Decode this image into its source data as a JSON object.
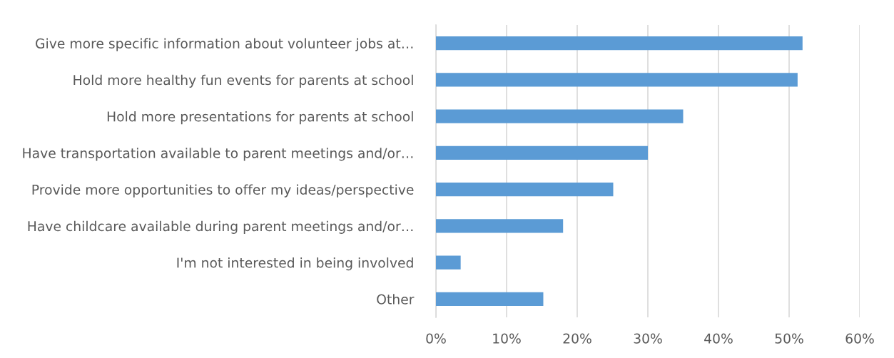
{
  "chart_data": {
    "type": "bar",
    "orientation": "horizontal",
    "categories": [
      "Give more specific information about volunteer jobs at…",
      "Hold more healthy fun events for parents at school",
      "Hold more presentations for parents at school",
      "Have transportation available to parent meetings and/or…",
      "Provide more opportunities to offer my ideas/perspective",
      "Have childcare available during parent meetings and/or…",
      "I'm not interested in being involved",
      "Other"
    ],
    "values": [
      51.9,
      51.2,
      35.0,
      30.0,
      25.1,
      18.0,
      3.5,
      15.2
    ],
    "color": "#5b9bd5",
    "xlim": [
      0,
      60
    ],
    "xticks": [
      {
        "value": 0,
        "label": "0%"
      },
      {
        "value": 10,
        "label": "10%"
      },
      {
        "value": 20,
        "label": "20%"
      },
      {
        "value": 30,
        "label": "30%"
      },
      {
        "value": 40,
        "label": "40%"
      },
      {
        "value": 50,
        "label": "50%"
      },
      {
        "value": 60,
        "label": "60%"
      }
    ],
    "grid": "x",
    "legend": false
  }
}
